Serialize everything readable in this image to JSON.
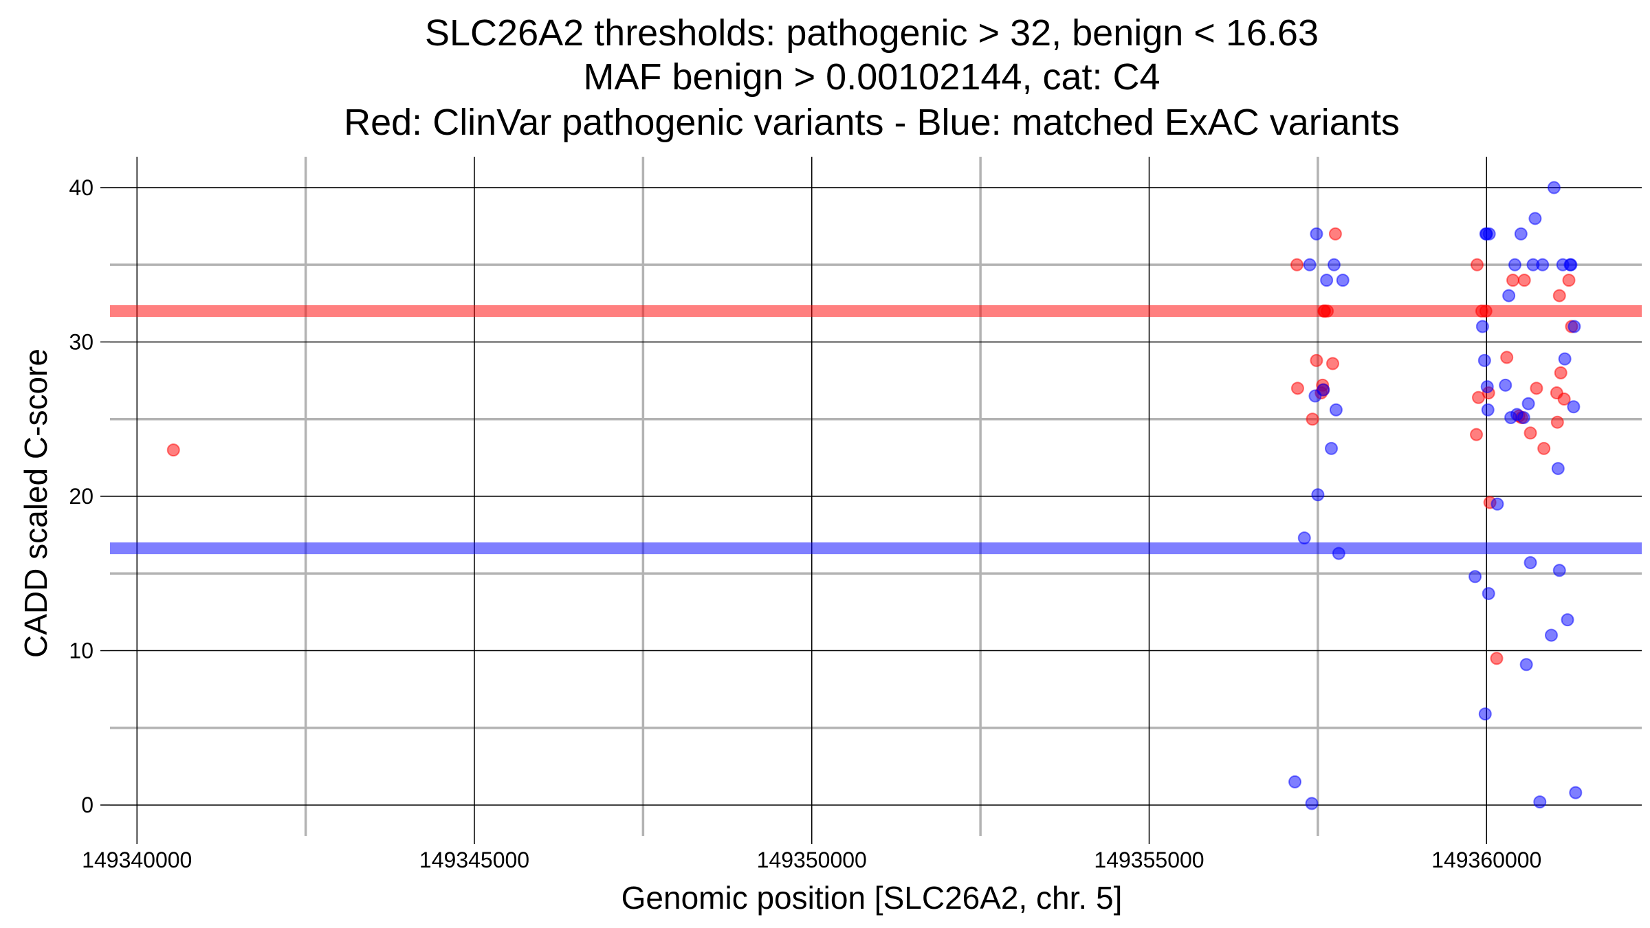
{
  "chart_data": {
    "type": "scatter",
    "title": [
      "SLC26A2 thresholds: pathogenic > 32, benign < 16.63",
      "MAF benign > 0.00102144, cat: C4",
      "Red: ClinVar pathogenic variants - Blue: matched ExAC variants"
    ],
    "xlabel": "Genomic position [SLC26A2, chr. 5]",
    "ylabel": "CADD scaled C-score",
    "xlim": [
      149339600,
      149362300
    ],
    "ylim": [
      -2,
      42
    ],
    "x_ticks": [
      149340000,
      149345000,
      149350000,
      149355000,
      149360000
    ],
    "x_tick_labels": [
      "149340000",
      "149345000",
      "149350000",
      "149355000",
      "149360000"
    ],
    "y_ticks": [
      0,
      10,
      20,
      30,
      40
    ],
    "y_tick_labels": [
      "0",
      "10",
      "20",
      "30",
      "40"
    ],
    "grid": true,
    "thresholds": [
      {
        "label": "pathogenic",
        "value": 32,
        "color": "#ff0000"
      },
      {
        "label": "benign",
        "value": 16.63,
        "color": "#0000ff"
      }
    ],
    "series": [
      {
        "color": "#ff0000",
        "x": [
          149340540,
          149357190,
          149357200,
          149357420,
          149357480,
          149357550,
          149357570,
          149357580,
          149357590,
          149357600,
          149357640,
          149357720,
          149357760,
          149359850,
          149359860,
          149359880,
          149359930,
          149359990,
          149360030,
          149360050,
          149360150,
          149360300,
          149360390,
          149360480,
          149360520,
          149360560,
          149360650,
          149360740,
          149360850,
          149361040,
          149361050,
          149361080,
          149361100,
          149361150,
          149361220,
          149361260
        ],
        "y": [
          23,
          35,
          27,
          25,
          28.8,
          26.7,
          27.2,
          26.9,
          32,
          32,
          32,
          28.6,
          37,
          24,
          35,
          26.4,
          32,
          32,
          26.7,
          19.6,
          9.5,
          29,
          34,
          25.2,
          25.1,
          34,
          24.1,
          27,
          23.1,
          26.7,
          24.8,
          33,
          28,
          26.3,
          34,
          31
        ]
      },
      {
        "color": "#0000ff",
        "x": [
          149357160,
          149357300,
          149357380,
          149357410,
          149357460,
          149357480,
          149357500,
          149357580,
          149357630,
          149357700,
          149357740,
          149357770,
          149357810,
          149357870,
          149359830,
          149359940,
          149359970,
          149359980,
          149359990,
          149360000,
          149360010,
          149360020,
          149360030,
          149360040,
          149360160,
          149360280,
          149360330,
          149360360,
          149360420,
          149360450,
          149360510,
          149360550,
          149360590,
          149360620,
          149360650,
          149360690,
          149360720,
          149360790,
          149360830,
          149360960,
          149361000,
          149361060,
          149361080,
          149361130,
          149361160,
          149361200,
          149361240,
          149361250,
          149361290,
          149361300,
          149361320
        ],
        "y": [
          1.5,
          17.3,
          35,
          0.1,
          26.5,
          37,
          20.1,
          26.9,
          34,
          23.1,
          35,
          25.6,
          16.3,
          34,
          14.8,
          31,
          28.8,
          5.9,
          37,
          37,
          27.1,
          25.6,
          13.7,
          37,
          19.5,
          27.2,
          33,
          25.1,
          35,
          25.3,
          37,
          25.1,
          9.1,
          26,
          15.7,
          35,
          38,
          0.2,
          35,
          11,
          40,
          21.8,
          15.2,
          35,
          28.9,
          12,
          35,
          35,
          25.8,
          31,
          0.8
        ]
      }
    ]
  }
}
